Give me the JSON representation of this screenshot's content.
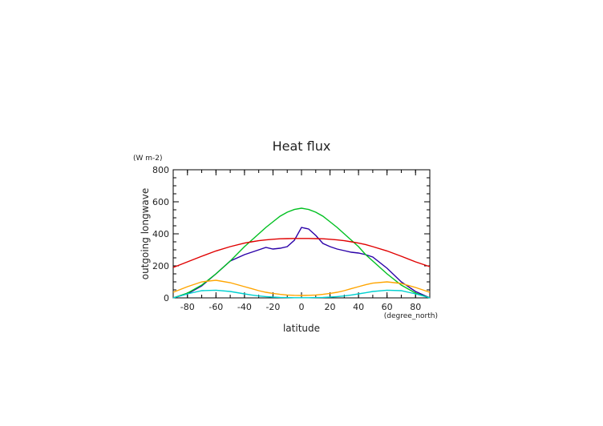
{
  "chart_data": {
    "type": "line",
    "title": "Heat flux",
    "xlabel": "latitude",
    "xunit": "(degree_north)",
    "ylabel": "outgoing longwave",
    "yunit": "(W m-2)",
    "xlim": [
      -90,
      90
    ],
    "ylim": [
      0,
      800
    ],
    "xticks": [
      -80,
      -60,
      -40,
      -20,
      0,
      20,
      40,
      60,
      80
    ],
    "yticks": [
      0,
      200,
      400,
      600,
      800
    ],
    "grid": false,
    "x": [
      -90,
      -80,
      -70,
      -60,
      -50,
      -40,
      -35,
      -30,
      -25,
      -20,
      -15,
      -10,
      -5,
      0,
      5,
      10,
      15,
      20,
      25,
      30,
      35,
      40,
      45,
      50,
      60,
      70,
      80,
      90
    ],
    "series": [
      {
        "color": "#2a00a8",
        "values": [
          0,
          25,
          75,
          150,
          230,
          270,
          285,
          300,
          315,
          305,
          310,
          320,
          360,
          440,
          430,
          390,
          340,
          320,
          305,
          295,
          285,
          280,
          270,
          255,
          185,
          100,
          40,
          0
        ]
      },
      {
        "color": "#00c020",
        "values": [
          0,
          30,
          80,
          150,
          230,
          320,
          360,
          400,
          440,
          475,
          510,
          535,
          552,
          560,
          552,
          535,
          510,
          475,
          440,
          400,
          360,
          320,
          270,
          230,
          150,
          80,
          30,
          0
        ]
      },
      {
        "color": "#e00000",
        "values": [
          190,
          225,
          260,
          293,
          320,
          342,
          350,
          357,
          362,
          366,
          369,
          370,
          371,
          371,
          371,
          370,
          369,
          366,
          362,
          357,
          350,
          342,
          333,
          320,
          293,
          260,
          225,
          195
        ]
      },
      {
        "color": "#ffa500",
        "values": [
          35,
          70,
          100,
          110,
          95,
          70,
          58,
          45,
          35,
          28,
          22,
          18,
          16,
          15,
          16,
          18,
          22,
          28,
          35,
          45,
          58,
          70,
          82,
          92,
          100,
          90,
          65,
          35
        ]
      },
      {
        "color": "#00d0d0",
        "values": [
          0,
          25,
          45,
          48,
          40,
          25,
          18,
          12,
          8,
          5,
          3,
          2,
          1,
          1,
          1,
          2,
          3,
          5,
          8,
          12,
          18,
          25,
          32,
          40,
          48,
          45,
          25,
          0
        ]
      }
    ]
  }
}
